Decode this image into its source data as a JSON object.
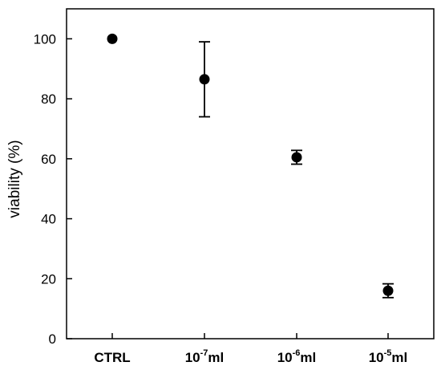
{
  "chart_data": {
    "type": "scatter",
    "title": "",
    "xlabel": "",
    "ylabel": "viability (%)",
    "ylim": [
      0,
      110
    ],
    "yticks": [
      0,
      20,
      40,
      60,
      80,
      100
    ],
    "categories": [
      {
        "base": "CTRL",
        "exp": "",
        "unit": ""
      },
      {
        "base": "10",
        "exp": "-7",
        "unit": "ml"
      },
      {
        "base": "10",
        "exp": "-6",
        "unit": "ml"
      },
      {
        "base": "10",
        "exp": "-5",
        "unit": "ml"
      }
    ],
    "series": [
      {
        "values": [
          100,
          86.5,
          60.5,
          16
        ],
        "error": [
          0,
          12.5,
          2.3,
          2.3
        ]
      }
    ],
    "grid": false,
    "legend": "none"
  }
}
